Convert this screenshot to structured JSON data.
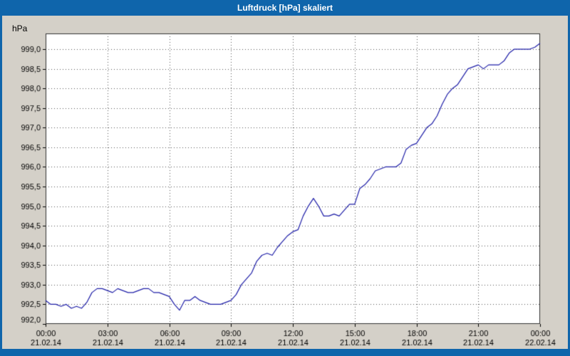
{
  "window": {
    "title": "Luftdruck [hPa] skaliert"
  },
  "colors": {
    "titlebar_blue": "#0f65ab",
    "frame_gray": "#d4d0c8",
    "plot_bg": "#ffffff",
    "line_navy": "#1f1fa8",
    "grid_dots": "#555555",
    "axis_border": "#333333",
    "axis_text": "#000000"
  },
  "chart_data": {
    "type": "line",
    "title": "Luftdruck [hPa] skaliert",
    "xlabel": "",
    "ylabel": "hPa",
    "ylim": [
      992.0,
      999.4
    ],
    "xlim": [
      0,
      24
    ],
    "grid": "dotted",
    "legend": "none",
    "ytick_values": [
      992.0,
      992.5,
      993.0,
      993.5,
      994.0,
      994.5,
      995.0,
      995.5,
      996.0,
      996.5,
      997.0,
      997.5,
      998.0,
      998.5,
      999.0
    ],
    "ytick_labels": [
      "992,0",
      "992,5",
      "993,0",
      "993,5",
      "994,0",
      "994,5",
      "995,0",
      "995,5",
      "996,0",
      "996,5",
      "997,0",
      "997,5",
      "998,0",
      "998,5",
      "999,0"
    ],
    "x_ticks": [
      {
        "hour": 0,
        "time": "00:00",
        "date": "21.02.14"
      },
      {
        "hour": 3,
        "time": "03:00",
        "date": "21.02.14"
      },
      {
        "hour": 6,
        "time": "06:00",
        "date": "21.02.14"
      },
      {
        "hour": 9,
        "time": "09:00",
        "date": "21.02.14"
      },
      {
        "hour": 12,
        "time": "12:00",
        "date": "21.02.14"
      },
      {
        "hour": 15,
        "time": "15:00",
        "date": "21.02.14"
      },
      {
        "hour": 18,
        "time": "18:00",
        "date": "21.02.14"
      },
      {
        "hour": 21,
        "time": "21:00",
        "date": "21.02.14"
      },
      {
        "hour": 24,
        "time": "00:00",
        "date": "22.02.14"
      }
    ],
    "series": [
      {
        "name": "Luftdruck",
        "x_hours": [
          0,
          0.25,
          0.5,
          0.75,
          1,
          1.25,
          1.5,
          1.75,
          2,
          2.25,
          2.5,
          2.75,
          3,
          3.25,
          3.5,
          3.75,
          4,
          4.25,
          4.5,
          4.75,
          5,
          5.25,
          5.5,
          5.75,
          6,
          6.25,
          6.5,
          6.75,
          7,
          7.25,
          7.5,
          7.75,
          8,
          8.25,
          8.5,
          8.75,
          9,
          9.25,
          9.5,
          9.75,
          10,
          10.25,
          10.5,
          10.75,
          11,
          11.25,
          11.5,
          11.75,
          12,
          12.25,
          12.5,
          12.75,
          13,
          13.25,
          13.5,
          13.75,
          14,
          14.25,
          14.5,
          14.75,
          15,
          15.25,
          15.5,
          15.75,
          16,
          16.25,
          16.5,
          16.75,
          17,
          17.25,
          17.5,
          17.75,
          18,
          18.25,
          18.5,
          18.75,
          19,
          19.25,
          19.5,
          19.75,
          20,
          20.25,
          20.5,
          20.75,
          21,
          21.25,
          21.5,
          21.75,
          22,
          22.25,
          22.5,
          22.75,
          23,
          23.25,
          23.5,
          23.75,
          24
        ],
        "values": [
          992.6,
          992.5,
          992.5,
          992.45,
          992.5,
          992.4,
          992.45,
          992.4,
          992.55,
          992.8,
          992.9,
          992.9,
          992.85,
          992.8,
          992.9,
          992.85,
          992.8,
          992.8,
          992.85,
          992.9,
          992.9,
          992.8,
          992.8,
          992.75,
          992.7,
          992.5,
          992.35,
          992.6,
          992.6,
          992.7,
          992.6,
          992.55,
          992.5,
          992.5,
          992.5,
          992.55,
          992.6,
          992.75,
          993.0,
          993.15,
          993.3,
          993.6,
          993.75,
          993.8,
          993.75,
          993.95,
          994.1,
          994.25,
          994.35,
          994.4,
          994.75,
          995.0,
          995.2,
          995.0,
          994.75,
          994.75,
          994.8,
          994.75,
          994.9,
          995.05,
          995.05,
          995.45,
          995.55,
          995.7,
          995.9,
          995.95,
          996.0,
          996.0,
          996.0,
          996.1,
          996.45,
          996.55,
          996.6,
          996.8,
          997.0,
          997.1,
          997.3,
          997.6,
          997.85,
          998.0,
          998.1,
          998.3,
          998.5,
          998.55,
          998.6,
          998.5,
          998.6,
          998.6,
          998.6,
          998.7,
          998.9,
          999.0,
          999.0,
          999.0,
          999.0,
          999.05,
          999.15
        ]
      }
    ]
  }
}
